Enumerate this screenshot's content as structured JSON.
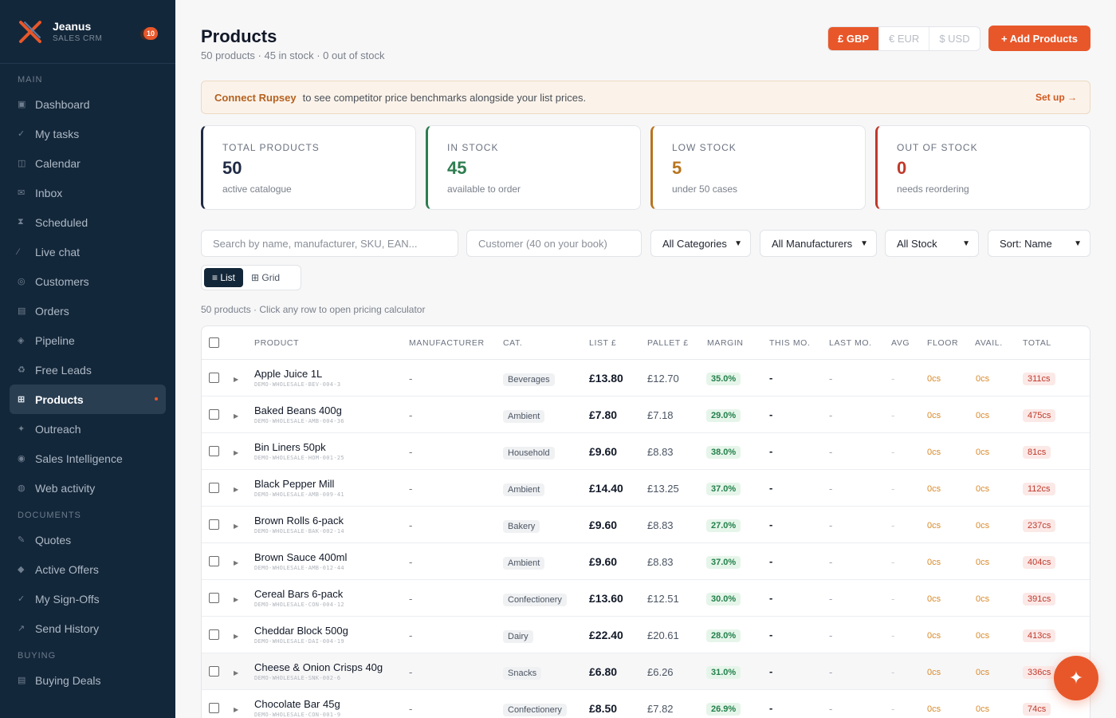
{
  "brand": {
    "name": "Jeanus",
    "subtitle": "SALES CRM",
    "notifications": "10"
  },
  "sidebar": {
    "sections": [
      {
        "label": "MAIN",
        "items": [
          {
            "label": "Dashboard",
            "icon": "grid-icon"
          },
          {
            "label": "My tasks",
            "icon": "check-icon"
          },
          {
            "label": "Calendar",
            "icon": "calendar-icon"
          },
          {
            "label": "Inbox",
            "icon": "mail-icon"
          },
          {
            "label": "Scheduled",
            "icon": "hourglass-icon"
          },
          {
            "label": "Live chat",
            "icon": "chat-icon"
          },
          {
            "label": "Customers",
            "icon": "users-icon"
          },
          {
            "label": "Orders",
            "icon": "orders-icon"
          },
          {
            "label": "Pipeline",
            "icon": "pipeline-icon"
          },
          {
            "label": "Free Leads",
            "icon": "recycle-icon"
          },
          {
            "label": "Products",
            "icon": "products-icon",
            "active": true
          },
          {
            "label": "Outreach",
            "icon": "sparkle-icon"
          },
          {
            "label": "Sales Intelligence",
            "icon": "target-icon"
          },
          {
            "label": "Web activity",
            "icon": "globe-icon"
          }
        ]
      },
      {
        "label": "DOCUMENTS",
        "items": [
          {
            "label": "Quotes",
            "icon": "pen-icon"
          },
          {
            "label": "Active Offers",
            "icon": "diamond-icon"
          },
          {
            "label": "My Sign-Offs",
            "icon": "check-icon"
          },
          {
            "label": "Send History",
            "icon": "send-icon"
          }
        ]
      },
      {
        "label": "BUYING",
        "items": [
          {
            "label": "Buying Deals",
            "icon": "deals-icon"
          }
        ]
      }
    ]
  },
  "header": {
    "title": "Products",
    "subtitle": "50 products · 45 in stock · 0 out of stock",
    "currencies": [
      "£ GBP",
      "€ EUR",
      "$ USD"
    ],
    "add_button": "+ Add Products"
  },
  "banner": {
    "strong": "Connect Rupsey",
    "text": "to see competitor price benchmarks alongside your list prices.",
    "link": "Set up →"
  },
  "stats": [
    {
      "label": "TOTAL PRODUCTS",
      "value": "50",
      "desc": "active catalogue",
      "color": "#1f2a44"
    },
    {
      "label": "IN STOCK",
      "value": "45",
      "desc": "available to order",
      "color": "#2e7d4f"
    },
    {
      "label": "LOW STOCK",
      "value": "5",
      "desc": "under 50 cases",
      "color": "#b8741f"
    },
    {
      "label": "OUT OF STOCK",
      "value": "0",
      "desc": "needs reordering",
      "color": "#c0392b"
    }
  ],
  "filters": {
    "search_placeholder": "Search by name, manufacturer, SKU, EAN...",
    "customer_placeholder": "Customer (40 on your book)",
    "category": "All Categories",
    "manufacturer": "All Manufacturers",
    "stock": "All Stock",
    "sort": "Sort: Name"
  },
  "view": {
    "list": "≡ List",
    "grid": "⊞ Grid"
  },
  "count_line": "50 products  · Click any row to open pricing calculator",
  "table": {
    "columns": [
      "PRODUCT",
      "MANUFACTURER",
      "CAT.",
      "LIST £",
      "PALLET £",
      "MARGIN",
      "THIS MO.",
      "LAST MO.",
      "AVG",
      "FLOOR",
      "AVAIL.",
      "TOTAL"
    ],
    "rows": [
      {
        "name": "Apple Juice 1L",
        "sku": "DEMO-WHOLESALE-BEV-004-3",
        "manufacturer": "-",
        "category": "Beverages",
        "list": "£13.80",
        "pallet": "£12.70",
        "margin": "35.0%",
        "this_mo": "-",
        "last_mo": "-",
        "avg": "-",
        "floor": "0cs",
        "avail": "0cs",
        "total": "311cs"
      },
      {
        "name": "Baked Beans 400g",
        "sku": "DEMO-WHOLESALE-AMB-004-36",
        "manufacturer": "-",
        "category": "Ambient",
        "list": "£7.80",
        "pallet": "£7.18",
        "margin": "29.0%",
        "this_mo": "-",
        "last_mo": "-",
        "avg": "-",
        "floor": "0cs",
        "avail": "0cs",
        "total": "475cs"
      },
      {
        "name": "Bin Liners 50pk",
        "sku": "DEMO-WHOLESALE-HOM-001-25",
        "manufacturer": "-",
        "category": "Household",
        "list": "£9.60",
        "pallet": "£8.83",
        "margin": "38.0%",
        "this_mo": "-",
        "last_mo": "-",
        "avg": "-",
        "floor": "0cs",
        "avail": "0cs",
        "total": "81cs"
      },
      {
        "name": "Black Pepper Mill",
        "sku": "DEMO-WHOLESALE-AMB-009-41",
        "manufacturer": "-",
        "category": "Ambient",
        "list": "£14.40",
        "pallet": "£13.25",
        "margin": "37.0%",
        "this_mo": "-",
        "last_mo": "-",
        "avg": "-",
        "floor": "0cs",
        "avail": "0cs",
        "total": "112cs"
      },
      {
        "name": "Brown Rolls 6-pack",
        "sku": "DEMO-WHOLESALE-BAK-002-14",
        "manufacturer": "-",
        "category": "Bakery",
        "list": "£9.60",
        "pallet": "£8.83",
        "margin": "27.0%",
        "this_mo": "-",
        "last_mo": "-",
        "avg": "-",
        "floor": "0cs",
        "avail": "0cs",
        "total": "237cs"
      },
      {
        "name": "Brown Sauce 400ml",
        "sku": "DEMO-WHOLESALE-AMB-012-44",
        "manufacturer": "-",
        "category": "Ambient",
        "list": "£9.60",
        "pallet": "£8.83",
        "margin": "37.0%",
        "this_mo": "-",
        "last_mo": "-",
        "avg": "-",
        "floor": "0cs",
        "avail": "0cs",
        "total": "404cs"
      },
      {
        "name": "Cereal Bars 6-pack",
        "sku": "DEMO-WHOLESALE-CON-004-12",
        "manufacturer": "-",
        "category": "Confectionery",
        "list": "£13.60",
        "pallet": "£12.51",
        "margin": "30.0%",
        "this_mo": "-",
        "last_mo": "-",
        "avg": "-",
        "floor": "0cs",
        "avail": "0cs",
        "total": "391cs"
      },
      {
        "name": "Cheddar Block 500g",
        "sku": "DEMO-WHOLESALE-DAI-004-19",
        "manufacturer": "-",
        "category": "Dairy",
        "list": "£22.40",
        "pallet": "£20.61",
        "margin": "28.0%",
        "this_mo": "-",
        "last_mo": "-",
        "avg": "-",
        "floor": "0cs",
        "avail": "0cs",
        "total": "413cs"
      },
      {
        "name": "Cheese & Onion Crisps 40g",
        "sku": "DEMO-WHOLESALE-SNK-002-6",
        "manufacturer": "-",
        "category": "Snacks",
        "list": "£6.80",
        "pallet": "£6.26",
        "margin": "31.0%",
        "this_mo": "-",
        "last_mo": "-",
        "avg": "-",
        "floor": "0cs",
        "avail": "0cs",
        "total": "336cs"
      },
      {
        "name": "Chocolate Bar 45g",
        "sku": "DEMO-WHOLESALE-CON-001-9",
        "manufacturer": "-",
        "category": "Confectionery",
        "list": "£8.50",
        "pallet": "£7.82",
        "margin": "26.9%",
        "this_mo": "-",
        "last_mo": "-",
        "avg": "-",
        "floor": "0cs",
        "avail": "0cs",
        "total": "74cs"
      }
    ]
  },
  "fab": "✦",
  "colors": {
    "accent": "#e8572a",
    "sidebar_bg": "#13273a"
  }
}
